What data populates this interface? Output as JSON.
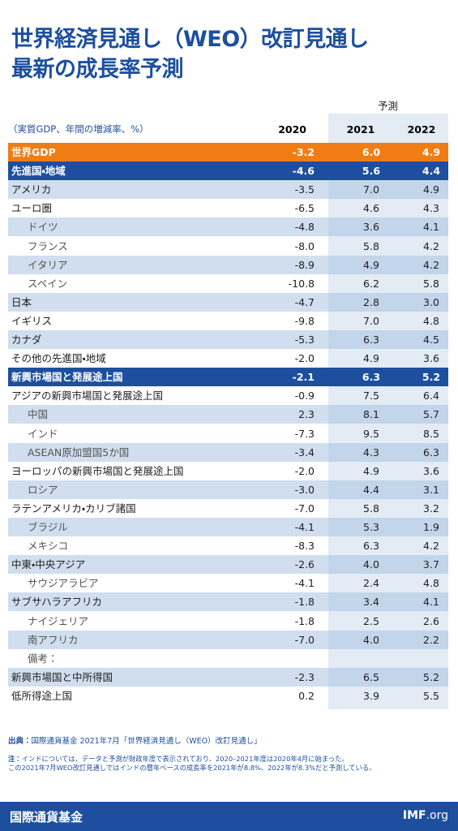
{
  "header": {
    "title_lines": [
      "世界経済見通し（WEO）改訂見通し",
      "最新の成長率予測"
    ],
    "forecast_label": "予測",
    "unit_label": "（実質GDP、年間の増減率、%）",
    "years": [
      "2020",
      "2021",
      "2022"
    ]
  },
  "table": {
    "rows": [
      {
        "label": "世界GDP",
        "style": "world",
        "values": [
          "-3.2",
          "6.0",
          "4.9"
        ]
      },
      {
        "label": "先進国・地域",
        "style": "group",
        "values": [
          "-4.6",
          "5.6",
          "4.4"
        ]
      },
      {
        "label": "アメリカ",
        "style": "main",
        "values": [
          "-3.5",
          "7.0",
          "4.9"
        ]
      },
      {
        "label": "ユーロ圏",
        "style": "main",
        "values": [
          "-6.5",
          "4.6",
          "4.3"
        ]
      },
      {
        "label": "ドイツ",
        "style": "sub",
        "values": [
          "-4.8",
          "3.6",
          "4.1"
        ]
      },
      {
        "label": "フランス",
        "style": "sub",
        "values": [
          "-8.0",
          "5.8",
          "4.2"
        ]
      },
      {
        "label": "イタリア",
        "style": "sub",
        "values": [
          "-8.9",
          "4.9",
          "4.2"
        ]
      },
      {
        "label": "スペイン",
        "style": "sub",
        "values": [
          "-10.8",
          "6.2",
          "5.8"
        ]
      },
      {
        "label": "日本",
        "style": "main",
        "values": [
          "-4.7",
          "2.8",
          "3.0"
        ]
      },
      {
        "label": "イギリス",
        "style": "main",
        "values": [
          "-9.8",
          "7.0",
          "4.8"
        ]
      },
      {
        "label": "カナダ",
        "style": "main",
        "values": [
          "-5.3",
          "6.3",
          "4.5"
        ]
      },
      {
        "label": "その他の先進国・地域",
        "style": "main",
        "values": [
          "-2.0",
          "4.9",
          "3.6"
        ]
      },
      {
        "label": "新興市場国と発展途上国",
        "style": "group",
        "values": [
          "-2.1",
          "6.3",
          "5.2"
        ]
      },
      {
        "label": "アジアの新興市場国と発展途上国",
        "style": "main",
        "values": [
          "-0.9",
          "7.5",
          "6.4"
        ]
      },
      {
        "label": "中国",
        "style": "sub",
        "values": [
          "2.3",
          "8.1",
          "5.7"
        ]
      },
      {
        "label": "インド",
        "style": "sub",
        "values": [
          "-7.3",
          "9.5",
          "8.5"
        ]
      },
      {
        "label": "ASEAN原加盟国5か国",
        "style": "sub",
        "values": [
          "-3.4",
          "4.3",
          "6.3"
        ]
      },
      {
        "label": "ヨーロッパの新興市場国と発展途上国",
        "style": "main",
        "values": [
          "-2.0",
          "4.9",
          "3.6"
        ]
      },
      {
        "label": "ロシア",
        "style": "sub",
        "values": [
          "-3.0",
          "4.4",
          "3.1"
        ]
      },
      {
        "label": "ラテンアメリカ・カリブ諸国",
        "style": "main",
        "values": [
          "-7.0",
          "5.8",
          "3.2"
        ]
      },
      {
        "label": "ブラジル",
        "style": "sub",
        "values": [
          "-4.1",
          "5.3",
          "1.9"
        ]
      },
      {
        "label": "メキシコ",
        "style": "sub",
        "values": [
          "-8.3",
          "6.3",
          "4.2"
        ]
      },
      {
        "label": "中東・中央アジア",
        "style": "main",
        "values": [
          "-2.6",
          "4.0",
          "3.7"
        ]
      },
      {
        "label": "サウジアラビア",
        "style": "sub",
        "values": [
          "-4.1",
          "2.4",
          "4.8"
        ]
      },
      {
        "label": "サブサハラアフリカ",
        "style": "main",
        "values": [
          "-1.8",
          "3.4",
          "4.1"
        ]
      },
      {
        "label": "ナイジェリア",
        "style": "sub",
        "values": [
          "-1.8",
          "2.5",
          "2.6"
        ]
      },
      {
        "label": "南アフリカ",
        "style": "sub",
        "values": [
          "-7.0",
          "4.0",
          "2.2"
        ]
      },
      {
        "label": "備考：",
        "style": "sub"
      },
      {
        "label": "新興市場国と中所得国",
        "style": "main",
        "values": [
          "-2.3",
          "6.5",
          "5.2"
        ]
      },
      {
        "label": "低所得途上国",
        "style": "main",
        "values": [
          "0.2",
          "3.9",
          "5.5"
        ]
      }
    ]
  },
  "footer": {
    "source_label": "出典：",
    "source_text": "国際通貨基金 2021年7月「世界経済見通し（WEO）改訂見通し」",
    "note_label": "注：",
    "note_lines": [
      "インドについては、データと予測が財政年度で表示されており、2020–2021年度は2020年4月に始まった。",
      "この2021年7月WEO改訂見通しではインドの暦年ベースの成長率を2021年が8.8%、2022年が8.3%だと予測している。"
    ]
  },
  "brand": {
    "name": "国際通貨基金",
    "url_main": "IMF",
    "url_suffix": ".org"
  }
}
